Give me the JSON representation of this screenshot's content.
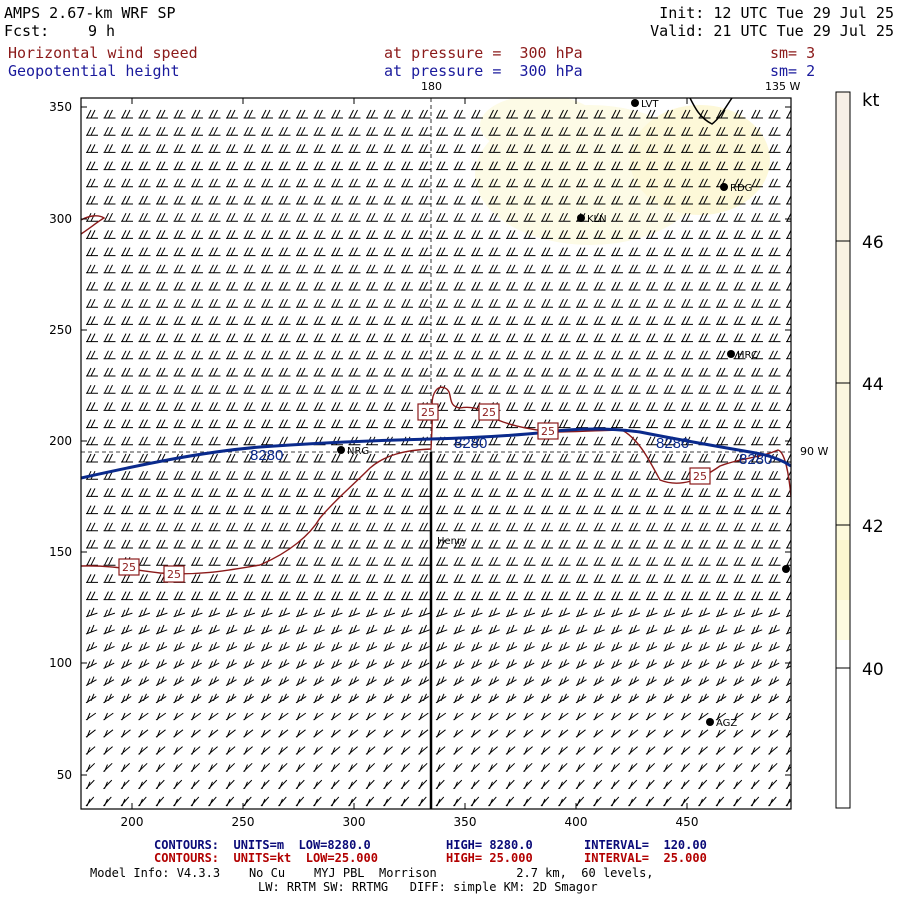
{
  "header": {
    "model": "AMPS 2.67-km WRF SP",
    "fcst_label": "Fcst:",
    "fcst_value": "9 h",
    "init": "Init: 12 UTC Tue 29 Jul 25",
    "valid": "Valid: 21 UTC Tue 29 Jul 25",
    "field1_name": "Horizontal wind speed",
    "field1_level": "at pressure =  300 hPa",
    "field1_sm": "sm= 3",
    "field2_name": "Geopotential height",
    "field2_level": "at pressure =  300 hPa",
    "field2_sm": "sm= 2"
  },
  "map": {
    "x_ticks": [
      "200",
      "250",
      "300",
      "350",
      "400",
      "450"
    ],
    "y_ticks": [
      "350",
      "300",
      "250",
      "200",
      "150",
      "100",
      "50"
    ],
    "meridian_labels": [
      "180",
      "135 W",
      "90 W"
    ],
    "stations": [
      {
        "name": "LVT"
      },
      {
        "name": "RDG"
      },
      {
        "name": "KLN"
      },
      {
        "name": "HRC"
      },
      {
        "name": "NRG"
      },
      {
        "name": "Henry"
      },
      {
        "name": "AGZ"
      }
    ],
    "height_contour_labels": [
      "8280",
      "8280",
      "8280",
      "8280"
    ],
    "wind_contour_labels": [
      "25",
      "25",
      "25",
      "25",
      "25",
      "25"
    ],
    "colors": {
      "height_contour": "#0a2a8c",
      "wind_contour": "#8b1a1a",
      "barb": "#000000",
      "shade_light": "#fdfbe6"
    }
  },
  "colorbar": {
    "unit": "kt",
    "ticks": [
      "46",
      "44",
      "42",
      "40"
    ],
    "colors": [
      "#f7efe6",
      "#f9f3e3",
      "#fbf6df",
      "#fdfadc",
      "#fcf7cf",
      "#fdfbe0",
      "#ffffff"
    ]
  },
  "footer": {
    "line1_label": "CONTOURS:  UNITS=m  LOW=",
    "line1_low": "8280.0",
    "line1_high_label": "HIGH=",
    "line1_high": "8280.0",
    "line1_int_label": "INTERVAL=",
    "line1_int": "120.00",
    "line2_label": "CONTOURS:  UNITS=kt  LOW=",
    "line2_low": "25.000",
    "line2_high_label": "HIGH=",
    "line2_high": "25.000",
    "line2_int_label": "INTERVAL=",
    "line2_int": "25.000",
    "model_info": "Model Info: V4.3.3    No Cu    MYJ PBL  Morrison           2.7 km,  60 levels,",
    "model_info2": "LW: RRTM SW: RRTMG   DIFF: simple KM: 2D Smagor"
  }
}
